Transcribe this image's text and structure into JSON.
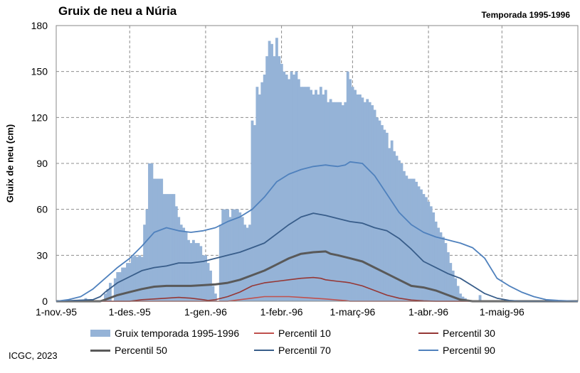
{
  "chart_data": {
    "type": "area",
    "title": "Gruix de neu a Núria",
    "subtitle": "Temporada 1995-1996",
    "xlabel": "",
    "ylabel": "Gruix de neu (cm)",
    "ylim": [
      0,
      180
    ],
    "yticks": [
      0,
      30,
      60,
      90,
      120,
      150,
      180
    ],
    "x_range_days": [
      "1995-11-01",
      "1996-05-31"
    ],
    "xtick_labels": [
      "1-nov.-95",
      "1-des.-95",
      "1-gen.-96",
      "1-febr.-96",
      "1-març-96",
      "1-abr.-96",
      "1-maig-96"
    ],
    "xtick_days": [
      0,
      30,
      61,
      92,
      121,
      152,
      182
    ],
    "grid": "dashed",
    "legend_position": "bottom",
    "colors": {
      "bars": "#95b3d7",
      "p10": "#c0504d",
      "p30": "#953735",
      "p50": "#595959",
      "p70": "#385d8a",
      "p90": "#4f81bd"
    },
    "series": [
      {
        "name": "Gruix temporada 1995-1996",
        "kind": "bar",
        "points": [
          [
            10,
            1
          ],
          [
            12,
            2
          ],
          [
            20,
            5
          ],
          [
            21,
            8
          ],
          [
            22,
            12
          ],
          [
            24,
            15
          ],
          [
            25,
            19
          ],
          [
            26,
            19
          ],
          [
            27,
            22
          ],
          [
            28,
            22
          ],
          [
            29,
            25
          ],
          [
            30,
            25
          ],
          [
            31,
            29
          ],
          [
            32,
            30
          ],
          [
            33,
            29
          ],
          [
            34,
            30
          ],
          [
            35,
            29
          ],
          [
            36,
            50
          ],
          [
            37,
            60
          ],
          [
            38,
            90
          ],
          [
            39,
            90
          ],
          [
            40,
            80
          ],
          [
            41,
            80
          ],
          [
            42,
            80
          ],
          [
            43,
            80
          ],
          [
            44,
            70
          ],
          [
            45,
            70
          ],
          [
            46,
            70
          ],
          [
            47,
            70
          ],
          [
            48,
            70
          ],
          [
            49,
            62
          ],
          [
            50,
            55
          ],
          [
            51,
            50
          ],
          [
            52,
            48
          ],
          [
            53,
            45
          ],
          [
            54,
            40
          ],
          [
            55,
            38
          ],
          [
            56,
            40
          ],
          [
            57,
            38
          ],
          [
            58,
            38
          ],
          [
            59,
            36
          ],
          [
            60,
            30
          ],
          [
            61,
            30
          ],
          [
            62,
            25
          ],
          [
            63,
            20
          ],
          [
            64,
            10
          ],
          [
            65,
            5
          ],
          [
            67,
            50
          ],
          [
            68,
            60
          ],
          [
            69,
            60
          ],
          [
            70,
            60
          ],
          [
            71,
            55
          ],
          [
            72,
            60
          ],
          [
            73,
            60
          ],
          [
            74,
            60
          ],
          [
            75,
            58
          ],
          [
            76,
            55
          ],
          [
            77,
            50
          ],
          [
            78,
            48
          ],
          [
            79,
            50
          ],
          [
            80,
            118
          ],
          [
            81,
            115
          ],
          [
            82,
            140
          ],
          [
            83,
            135
          ],
          [
            84,
            143
          ],
          [
            85,
            148
          ],
          [
            86,
            160
          ],
          [
            87,
            170
          ],
          [
            88,
            168
          ],
          [
            89,
            160
          ],
          [
            90,
            172
          ],
          [
            91,
            160
          ],
          [
            92,
            155
          ],
          [
            93,
            150
          ],
          [
            94,
            148
          ],
          [
            95,
            145
          ],
          [
            96,
            150
          ],
          [
            97,
            148
          ],
          [
            98,
            150
          ],
          [
            99,
            145
          ],
          [
            100,
            140
          ],
          [
            101,
            140
          ],
          [
            102,
            140
          ],
          [
            103,
            140
          ],
          [
            104,
            138
          ],
          [
            105,
            135
          ],
          [
            106,
            138
          ],
          [
            107,
            135
          ],
          [
            108,
            140
          ],
          [
            109,
            135
          ],
          [
            110,
            138
          ],
          [
            111,
            130
          ],
          [
            112,
            132
          ],
          [
            113,
            130
          ],
          [
            114,
            130
          ],
          [
            115,
            130
          ],
          [
            116,
            130
          ],
          [
            117,
            128
          ],
          [
            118,
            130
          ],
          [
            119,
            150
          ],
          [
            120,
            145
          ],
          [
            121,
            140
          ],
          [
            122,
            138
          ],
          [
            123,
            135
          ],
          [
            124,
            135
          ],
          [
            125,
            133
          ],
          [
            126,
            130
          ],
          [
            127,
            132
          ],
          [
            128,
            130
          ],
          [
            129,
            128
          ],
          [
            130,
            125
          ],
          [
            131,
            120
          ],
          [
            132,
            118
          ],
          [
            133,
            115
          ],
          [
            134,
            112
          ],
          [
            135,
            110
          ],
          [
            136,
            100
          ],
          [
            137,
            105
          ],
          [
            138,
            98
          ],
          [
            139,
            95
          ],
          [
            140,
            92
          ],
          [
            141,
            90
          ],
          [
            142,
            85
          ],
          [
            143,
            82
          ],
          [
            144,
            80
          ],
          [
            145,
            80
          ],
          [
            146,
            80
          ],
          [
            147,
            78
          ],
          [
            148,
            75
          ],
          [
            149,
            73
          ],
          [
            150,
            70
          ],
          [
            151,
            68
          ],
          [
            152,
            65
          ],
          [
            153,
            62
          ],
          [
            154,
            58
          ],
          [
            155,
            52
          ],
          [
            156,
            48
          ],
          [
            157,
            45
          ],
          [
            158,
            42
          ],
          [
            159,
            38
          ],
          [
            160,
            32
          ],
          [
            161,
            25
          ],
          [
            162,
            20
          ],
          [
            163,
            15
          ],
          [
            164,
            10
          ],
          [
            165,
            5
          ],
          [
            166,
            3
          ],
          [
            167,
            2
          ],
          [
            173,
            4
          ]
        ]
      },
      {
        "name": "Percentil 10",
        "kind": "line",
        "points": [
          [
            0,
            0
          ],
          [
            70,
            0
          ],
          [
            75,
            1
          ],
          [
            80,
            2
          ],
          [
            85,
            3
          ],
          [
            90,
            3
          ],
          [
            95,
            3
          ],
          [
            100,
            2.5
          ],
          [
            105,
            2
          ],
          [
            110,
            1.5
          ],
          [
            115,
            0.8
          ],
          [
            118,
            0.4
          ],
          [
            120,
            0
          ],
          [
            213,
            0
          ]
        ]
      },
      {
        "name": "Percentil 30",
        "kind": "line",
        "points": [
          [
            0,
            0
          ],
          [
            30,
            0
          ],
          [
            35,
            1
          ],
          [
            40,
            1.5
          ],
          [
            45,
            2
          ],
          [
            50,
            2.5
          ],
          [
            55,
            2
          ],
          [
            60,
            1
          ],
          [
            62,
            0.5
          ],
          [
            65,
            1
          ],
          [
            70,
            3
          ],
          [
            75,
            6
          ],
          [
            80,
            10
          ],
          [
            85,
            12
          ],
          [
            90,
            13
          ],
          [
            95,
            14
          ],
          [
            100,
            15
          ],
          [
            105,
            15.5
          ],
          [
            108,
            15
          ],
          [
            110,
            14
          ],
          [
            115,
            13
          ],
          [
            118,
            12.5
          ],
          [
            120,
            12
          ],
          [
            125,
            10
          ],
          [
            130,
            7
          ],
          [
            135,
            4
          ],
          [
            140,
            2
          ],
          [
            145,
            0.8
          ],
          [
            150,
            0.3
          ],
          [
            155,
            0
          ],
          [
            213,
            0
          ]
        ]
      },
      {
        "name": "Percentil 50",
        "kind": "line",
        "points": [
          [
            0,
            0
          ],
          [
            18,
            0
          ],
          [
            20,
            1
          ],
          [
            25,
            4
          ],
          [
            30,
            6
          ],
          [
            35,
            8
          ],
          [
            40,
            9.5
          ],
          [
            45,
            10
          ],
          [
            50,
            10
          ],
          [
            55,
            10
          ],
          [
            60,
            10.5
          ],
          [
            65,
            11
          ],
          [
            70,
            12
          ],
          [
            75,
            14
          ],
          [
            80,
            17
          ],
          [
            85,
            20
          ],
          [
            90,
            24
          ],
          [
            95,
            28
          ],
          [
            100,
            31
          ],
          [
            105,
            32
          ],
          [
            110,
            32.5
          ],
          [
            112,
            31
          ],
          [
            115,
            30
          ],
          [
            120,
            28
          ],
          [
            125,
            26
          ],
          [
            130,
            22
          ],
          [
            135,
            18
          ],
          [
            140,
            14
          ],
          [
            145,
            10
          ],
          [
            150,
            9
          ],
          [
            155,
            7
          ],
          [
            160,
            4
          ],
          [
            165,
            1
          ],
          [
            170,
            0
          ],
          [
            213,
            0
          ]
        ]
      },
      {
        "name": "Percentil 70",
        "kind": "line",
        "points": [
          [
            0,
            0
          ],
          [
            15,
            1
          ],
          [
            18,
            3
          ],
          [
            20,
            6
          ],
          [
            25,
            12
          ],
          [
            30,
            16
          ],
          [
            35,
            20
          ],
          [
            40,
            22
          ],
          [
            45,
            23
          ],
          [
            50,
            25
          ],
          [
            55,
            25
          ],
          [
            60,
            26
          ],
          [
            65,
            28
          ],
          [
            70,
            30
          ],
          [
            75,
            32
          ],
          [
            80,
            35
          ],
          [
            85,
            38
          ],
          [
            90,
            44
          ],
          [
            95,
            50
          ],
          [
            100,
            55
          ],
          [
            105,
            57.5
          ],
          [
            110,
            56
          ],
          [
            115,
            54
          ],
          [
            120,
            52
          ],
          [
            125,
            51
          ],
          [
            130,
            48
          ],
          [
            135,
            46
          ],
          [
            140,
            41
          ],
          [
            145,
            34
          ],
          [
            150,
            26
          ],
          [
            155,
            22
          ],
          [
            160,
            18
          ],
          [
            165,
            15
          ],
          [
            170,
            10
          ],
          [
            175,
            5
          ],
          [
            180,
            2
          ],
          [
            185,
            0.5
          ],
          [
            190,
            0
          ],
          [
            213,
            0
          ]
        ]
      },
      {
        "name": "Percentil 90",
        "kind": "line",
        "points": [
          [
            0,
            0
          ],
          [
            5,
            1
          ],
          [
            10,
            3
          ],
          [
            15,
            8
          ],
          [
            20,
            15
          ],
          [
            25,
            22
          ],
          [
            30,
            28
          ],
          [
            35,
            36
          ],
          [
            40,
            45
          ],
          [
            45,
            48
          ],
          [
            50,
            46
          ],
          [
            55,
            45
          ],
          [
            60,
            46
          ],
          [
            65,
            48
          ],
          [
            70,
            52
          ],
          [
            75,
            55
          ],
          [
            80,
            60
          ],
          [
            85,
            68
          ],
          [
            90,
            78
          ],
          [
            95,
            83
          ],
          [
            100,
            86
          ],
          [
            105,
            88
          ],
          [
            110,
            89
          ],
          [
            112,
            88.5
          ],
          [
            115,
            88
          ],
          [
            118,
            89
          ],
          [
            120,
            91
          ],
          [
            125,
            90
          ],
          [
            130,
            82
          ],
          [
            135,
            70
          ],
          [
            140,
            58
          ],
          [
            145,
            50
          ],
          [
            150,
            45
          ],
          [
            155,
            42
          ],
          [
            160,
            40
          ],
          [
            165,
            38
          ],
          [
            170,
            35
          ],
          [
            175,
            28
          ],
          [
            180,
            15
          ],
          [
            185,
            10
          ],
          [
            190,
            6
          ],
          [
            195,
            3
          ],
          [
            200,
            1
          ],
          [
            205,
            0.5
          ],
          [
            213,
            0
          ]
        ]
      }
    ]
  },
  "footer": "ICGC, 2023"
}
